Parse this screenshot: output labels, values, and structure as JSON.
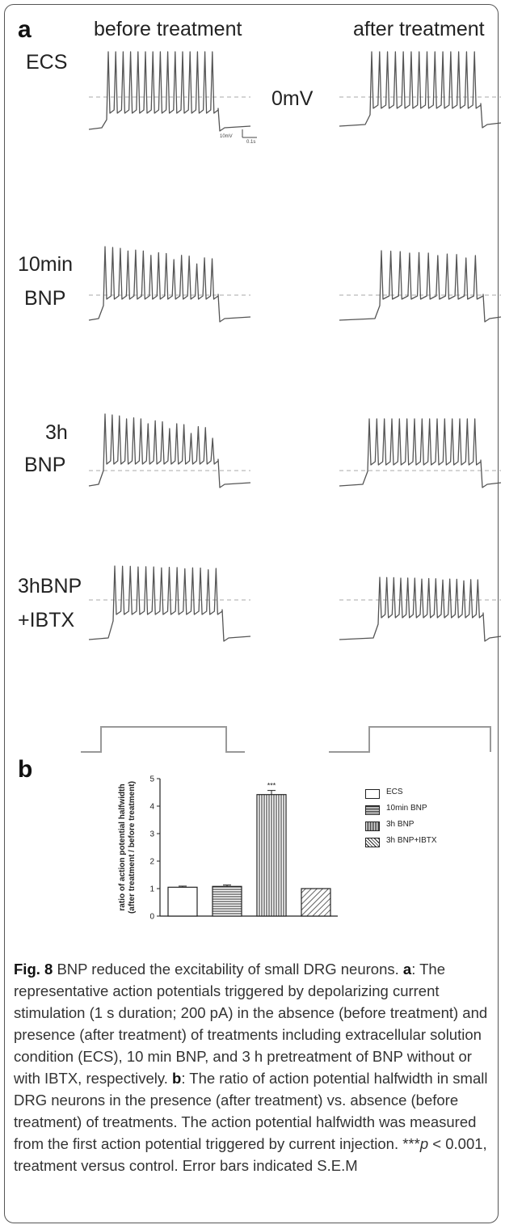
{
  "figure": {
    "panel_a_label": "a",
    "panel_b_label": "b",
    "col_before": "before treatment",
    "col_after": "after treatment",
    "zero_label": "0mV",
    "scale_v": "10mV",
    "scale_t": "0.1s",
    "rows": [
      {
        "label_1": "ECS",
        "label_2": ""
      },
      {
        "label_1": "10min",
        "label_2": "BNP"
      },
      {
        "label_1": "3h",
        "label_2": "BNP"
      },
      {
        "label_1": "3hBNP",
        "label_2": "+IBTX"
      }
    ],
    "trace_color": "#555555",
    "dash_color": "#bbbbbb"
  },
  "chart_data": {
    "type": "bar",
    "title": "",
    "xlabel": "",
    "ylabel": "ratio of action potential halfwidth\n(after treatment / before treatment)",
    "ylabel_line1": "ratio of action potential halfwidth",
    "ylabel_line2": "(after treatment / before treatment)",
    "categories": [
      "ECS",
      "10min BNP",
      "3h BNP",
      "3h BNP+IBTX"
    ],
    "values": [
      1.05,
      1.08,
      4.42,
      1.0
    ],
    "errors": [
      0.04,
      0.05,
      0.15,
      0.0
    ],
    "patterns": [
      "plain",
      "hlines",
      "vlines",
      "diag"
    ],
    "annotation": {
      "category": "3h BNP",
      "text": "***"
    },
    "ylim": [
      0,
      5
    ],
    "yticks": [
      "0",
      "1",
      "2",
      "3",
      "4",
      "5"
    ],
    "legend": {
      "position": "right",
      "entries": [
        "ECS",
        "10min BNP",
        "3h BNP",
        "3h BNP+IBTX"
      ]
    }
  },
  "caption": {
    "fig_label": "Fig. 8",
    "title": " BNP reduced the excitability of small DRG neurons. ",
    "a_label": "a",
    "a_text": ": The representative action potentials triggered by depolarizing current stimulation (1 s duration; 200 pA) in the absence (before treatment) and presence (after treatment) of treatments including extracellular solution condition (ECS), 10 min BNP, and 3 h pretreatment of BNP without or with IBTX, respectively. ",
    "b_label": "b",
    "b_text_1": ": The ratio of action potential halfwidth in small DRG neurons in the presence (after treatment) vs. absence (before treatment) of treatments. The action potential halfwidth was measured from the first action potential triggered by current injection. ***",
    "p_symbol": "p",
    "b_text_2": " < 0.001, treatment versus control. Error bars indicated S.E.M"
  }
}
